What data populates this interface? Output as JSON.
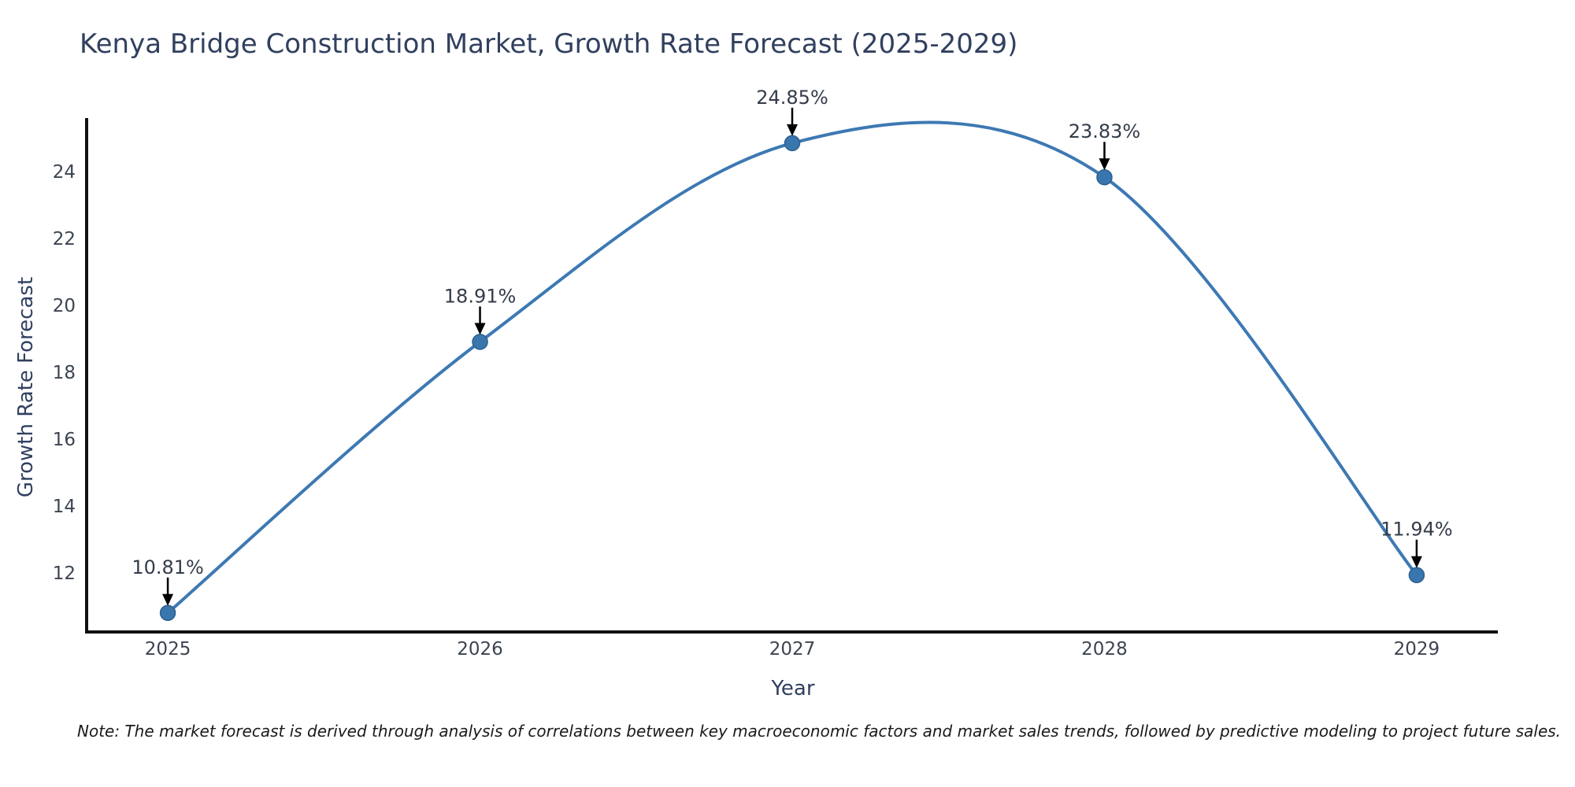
{
  "chart_data": {
    "type": "line",
    "title": "Kenya Bridge Construction Market, Growth Rate Forecast (2025-2029)",
    "xlabel": "Year",
    "ylabel": "Growth Rate Forecast",
    "x": [
      2025,
      2026,
      2027,
      2028,
      2029
    ],
    "categories": [
      "2025",
      "2026",
      "2027",
      "2028",
      "2029"
    ],
    "values": [
      10.81,
      18.91,
      24.85,
      23.83,
      11.94
    ],
    "point_labels": [
      "10.81%",
      "18.91%",
      "24.85%",
      "23.83%",
      "11.94%"
    ],
    "yticks": [
      12,
      14,
      16,
      18,
      20,
      22,
      24
    ],
    "xlim": [
      2024.74,
      2029.26
    ],
    "ylim": [
      10.24,
      25.6
    ],
    "grid": false,
    "legend": "none",
    "line_color": "#3d79b3",
    "marker_color": "#3a76ae",
    "marker_edge_color": "#2d608f",
    "axis_color": "#111111",
    "tick_color": "#3b4450",
    "annotation_color": "#333c49",
    "arrow_color": "#000000"
  },
  "note": {
    "text": "Note: The market forecast is derived through analysis of correlations between key macroeconomic factors and market sales trends, followed by predictive modeling to project future sales."
  }
}
